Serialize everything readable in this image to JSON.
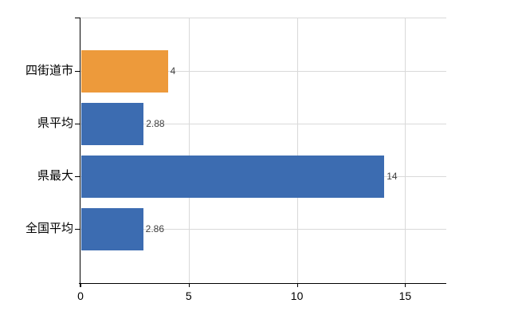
{
  "chart_data": {
    "type": "bar",
    "orientation": "horizontal",
    "title": "",
    "categories": [
      "四街道市",
      "県平均",
      "県最大",
      "全国平均"
    ],
    "values": [
      4,
      2.88,
      14,
      2.86
    ],
    "value_labels": [
      "4",
      "2.88",
      "14",
      "2.86"
    ],
    "bar_colors": [
      "#ED9A3B",
      "#3C6CB1",
      "#3C6CB1",
      "#3C6CB1"
    ],
    "xlabel": "",
    "ylabel": "",
    "xlim": [
      0,
      16.9
    ],
    "x_ticks": [
      0,
      5,
      10,
      15
    ],
    "grid": true,
    "legend": "none",
    "colors": {
      "highlight_bar": "#ED9A3B",
      "default_bar": "#3C6CB1",
      "gridline": "#D9D9D9",
      "axis": "#000000",
      "value_label": "#404040",
      "background": "#FFFFFF"
    }
  }
}
